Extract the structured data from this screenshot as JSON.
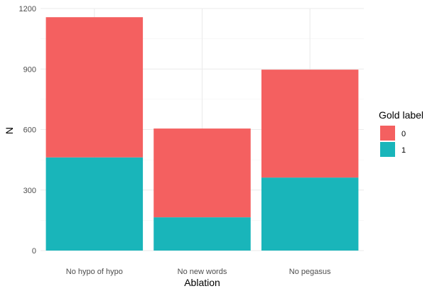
{
  "chart_data": {
    "type": "bar",
    "stacked": true,
    "categories": [
      "No hypo of hypo",
      "No new words",
      "No pegasus"
    ],
    "series": [
      {
        "name": "1",
        "values": [
          462,
          165,
          362
        ],
        "color": "#19B5BA"
      },
      {
        "name": "0",
        "values": [
          695,
          440,
          535
        ],
        "color": "#F46060"
      }
    ],
    "xlabel": "Ablation",
    "ylabel": "N",
    "ylim": [
      0,
      1200
    ],
    "yticks": [
      0,
      300,
      600,
      900,
      1200
    ],
    "grid": true,
    "legend": {
      "title": "Gold label",
      "placement": "right",
      "entries": [
        {
          "label": "0",
          "color": "#F46060"
        },
        {
          "label": "1",
          "color": "#19B5BA"
        }
      ]
    }
  }
}
